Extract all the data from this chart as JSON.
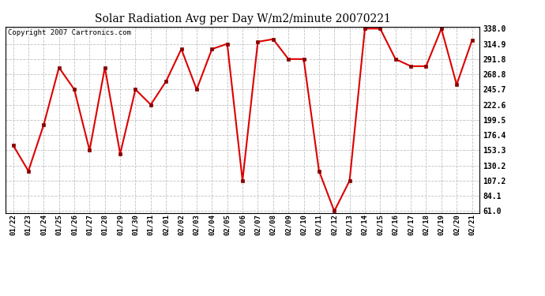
{
  "title": "Solar Radiation Avg per Day W/m2/minute 20070221",
  "copyright": "Copyright 2007 Cartronics.com",
  "dates": [
    "01/22",
    "01/23",
    "01/24",
    "01/25",
    "01/26",
    "01/27",
    "01/28",
    "01/29",
    "01/30",
    "01/31",
    "02/01",
    "02/02",
    "02/03",
    "02/04",
    "02/05",
    "02/06",
    "02/07",
    "02/08",
    "02/09",
    "02/10",
    "02/11",
    "02/12",
    "02/13",
    "02/14",
    "02/15",
    "02/16",
    "02/17",
    "02/18",
    "02/19",
    "02/20",
    "02/21"
  ],
  "values": [
    161.0,
    122.0,
    192.0,
    279.0,
    245.7,
    153.3,
    279.0,
    148.0,
    245.7,
    222.6,
    258.0,
    307.0,
    245.7,
    307.0,
    314.9,
    107.2,
    318.0,
    322.0,
    291.8,
    291.8,
    122.0,
    61.0,
    107.2,
    338.0,
    338.0,
    291.8,
    281.0,
    281.0,
    338.0,
    253.0,
    320.0
  ],
  "line_color": "#dd0000",
  "marker_color": "#880000",
  "bg_color": "#ffffff",
  "plot_bg_color": "#ffffff",
  "grid_color": "#bbbbbb",
  "yticks": [
    61.0,
    84.1,
    107.2,
    130.2,
    153.3,
    176.4,
    199.5,
    222.6,
    245.7,
    268.8,
    291.8,
    314.9,
    338.0
  ],
  "ymin": 61.0,
  "ymax": 338.0
}
